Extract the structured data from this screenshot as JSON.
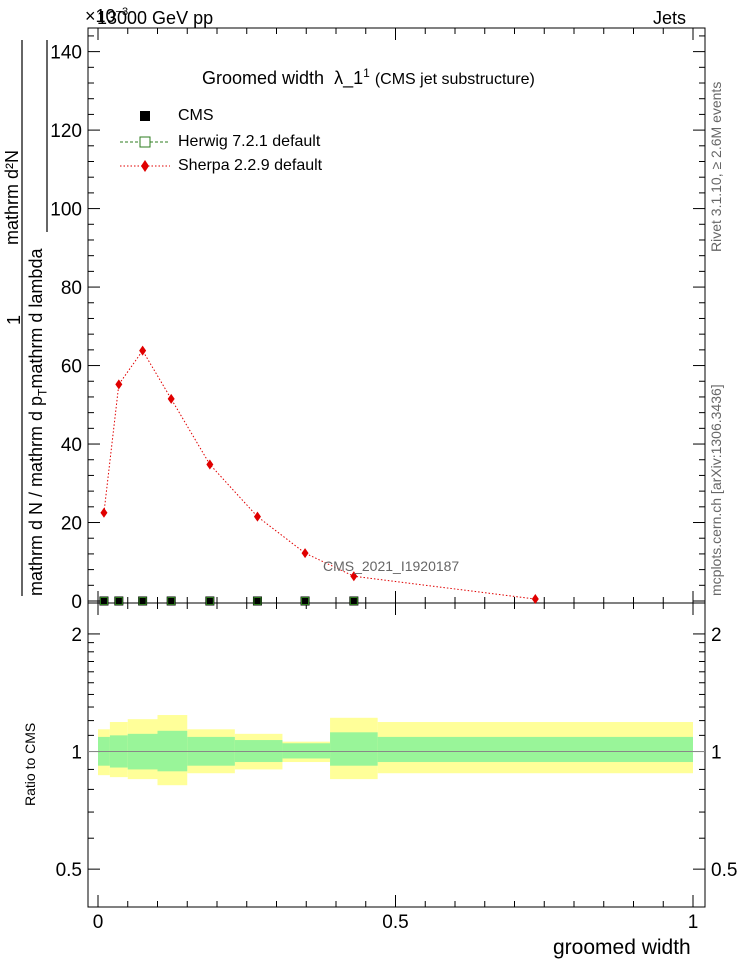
{
  "header": {
    "energy": "13000 GeV pp",
    "category": "Jets",
    "exponent_label": "×10"
  },
  "side": {
    "rivet": "Rivet 3.1.10, ≥ 2.6M events",
    "mcplots": "mcplots.cern.ch [arXiv:1306.3436]"
  },
  "plot": {
    "title": "Groomed width",
    "title_symbol": "λ_1",
    "title_sup": "1",
    "title_suffix": "(CMS jet substructure)",
    "ylabel_num": "mathrm d²N",
    "ylabel_den_a": "mathrm d p",
    "ylabel_den_b": "mathrm d lambda",
    "ylabel_left_num": "1",
    "ylabel_left_den_a": "mathrm d N / mathrm d p",
    "analysis_id": "CMS_2021_I1920187",
    "ratio_ylabel": "Ratio to CMS",
    "xlabel": "groomed width"
  },
  "legend": [
    {
      "name": "CMS",
      "color": "#000000",
      "marker": "filled-square"
    },
    {
      "name": "Herwig 7.2.1 default",
      "color": "#2e7d1f",
      "marker": "open-square"
    },
    {
      "name": "Sherpa 2.2.9 default",
      "color": "#e00000",
      "marker": "diamond"
    }
  ],
  "chart_data": {
    "type": "line",
    "xlabel": "groomed width",
    "xlim": [
      0,
      1
    ],
    "ylim": [
      0,
      145
    ],
    "y_multiplier": "×10^-3",
    "y_ticks": [
      0,
      20,
      40,
      60,
      80,
      100,
      120,
      140
    ],
    "x_ticks": [
      0,
      0.5,
      1
    ],
    "x_tick_labels": [
      "0",
      "0.5",
      "1"
    ],
    "series": [
      {
        "name": "CMS",
        "x": [
          0.01,
          0.035,
          0.075,
          0.123,
          0.188,
          0.268,
          0.348,
          0.43
        ],
        "y": [
          0,
          0,
          0,
          0,
          0,
          0,
          0,
          0
        ]
      },
      {
        "name": "Herwig 7.2.1 default",
        "x": [
          0.01,
          0.035,
          0.075,
          0.123,
          0.188,
          0.268,
          0.348,
          0.43
        ],
        "y": [
          0,
          0,
          0,
          0,
          0,
          0,
          0,
          0
        ]
      },
      {
        "name": "Sherpa 2.2.9 default",
        "x": [
          0.01,
          0.035,
          0.075,
          0.123,
          0.188,
          0.268,
          0.348,
          0.43,
          0.735
        ],
        "y": [
          22.5,
          55.2,
          63.8,
          51.5,
          34.8,
          21.5,
          12.2,
          6.3,
          0.5
        ]
      }
    ],
    "ratio": {
      "ylabel": "Ratio to CMS",
      "y_ticks": [
        0.5,
        1,
        2
      ],
      "y_tick_labels": [
        "0.5",
        "1",
        "2"
      ],
      "ylim": [
        0.4,
        2.4
      ],
      "bins": [
        {
          "x0": 0.0,
          "x1": 0.02,
          "inner": [
            0.92,
            1.09
          ],
          "outer": [
            0.87,
            1.14
          ]
        },
        {
          "x0": 0.02,
          "x1": 0.05,
          "inner": [
            0.91,
            1.1
          ],
          "outer": [
            0.86,
            1.19
          ]
        },
        {
          "x0": 0.05,
          "x1": 0.1,
          "inner": [
            0.9,
            1.11
          ],
          "outer": [
            0.85,
            1.21
          ]
        },
        {
          "x0": 0.1,
          "x1": 0.15,
          "inner": [
            0.89,
            1.13
          ],
          "outer": [
            0.82,
            1.24
          ]
        },
        {
          "x0": 0.15,
          "x1": 0.23,
          "inner": [
            0.92,
            1.09
          ],
          "outer": [
            0.88,
            1.14
          ]
        },
        {
          "x0": 0.23,
          "x1": 0.31,
          "inner": [
            0.94,
            1.07
          ],
          "outer": [
            0.9,
            1.11
          ]
        },
        {
          "x0": 0.31,
          "x1": 0.39,
          "inner": [
            0.96,
            1.05
          ],
          "outer": [
            0.94,
            1.06
          ]
        },
        {
          "x0": 0.39,
          "x1": 0.47,
          "inner": [
            0.92,
            1.12
          ],
          "outer": [
            0.85,
            1.22
          ]
        },
        {
          "x0": 0.47,
          "x1": 1.0,
          "inner": [
            0.94,
            1.09
          ],
          "outer": [
            0.88,
            1.19
          ]
        }
      ]
    }
  }
}
